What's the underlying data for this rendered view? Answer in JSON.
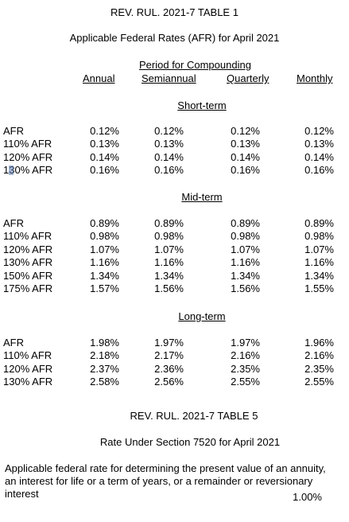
{
  "table1": {
    "title": "REV. RUL. 2021-7 TABLE 1",
    "subtitle": "Applicable Federal Rates (AFR) for April 2021",
    "period_header": "Period for Compounding",
    "columns": [
      "Annual",
      "Semiannual",
      "Quarterly",
      "Monthly"
    ],
    "sections": [
      {
        "name": "Short-term",
        "rows": [
          {
            "label": "AFR",
            "values": [
              "0.12%",
              "0.12%",
              "0.12%",
              "0.12%"
            ]
          },
          {
            "label": "110% AFR",
            "values": [
              "0.13%",
              "0.13%",
              "0.13%",
              "0.13%"
            ]
          },
          {
            "label": "120% AFR",
            "values": [
              "0.14%",
              "0.14%",
              "0.14%",
              "0.14%"
            ]
          },
          {
            "label": "130% AFR",
            "values": [
              "0.16%",
              "0.16%",
              "0.16%",
              "0.16%"
            ]
          }
        ]
      },
      {
        "name": "Mid-term",
        "rows": [
          {
            "label": "AFR",
            "values": [
              "0.89%",
              "0.89%",
              "0.89%",
              "0.89%"
            ]
          },
          {
            "label": "110% AFR",
            "values": [
              "0.98%",
              "0.98%",
              "0.98%",
              "0.98%"
            ]
          },
          {
            "label": "120% AFR",
            "values": [
              "1.07%",
              "1.07%",
              "1.07%",
              "1.07%"
            ]
          },
          {
            "label": "130% AFR",
            "values": [
              "1.16%",
              "1.16%",
              "1.16%",
              "1.16%"
            ]
          },
          {
            "label": "150% AFR",
            "values": [
              "1.34%",
              "1.34%",
              "1.34%",
              "1.34%"
            ]
          },
          {
            "label": "175% AFR",
            "values": [
              "1.57%",
              "1.56%",
              "1.56%",
              "1.55%"
            ]
          }
        ]
      },
      {
        "name": "Long-term",
        "rows": [
          {
            "label": "AFR",
            "values": [
              "1.98%",
              "1.97%",
              "1.97%",
              "1.96%"
            ]
          },
          {
            "label": "110% AFR",
            "values": [
              "2.18%",
              "2.17%",
              "2.16%",
              "2.16%"
            ]
          },
          {
            "label": "120% AFR",
            "values": [
              "2.37%",
              "2.36%",
              "2.35%",
              "2.35%"
            ]
          },
          {
            "label": "130% AFR",
            "values": [
              "2.58%",
              "2.56%",
              "2.55%",
              "2.55%"
            ]
          }
        ]
      }
    ]
  },
  "table5": {
    "title": "REV. RUL. 2021-7 TABLE 5",
    "subtitle": "Rate Under Section 7520 for April 2021",
    "description": "Applicable federal rate for determining the present value of an annuity, an interest for life or a term of years, or a remainder or reversionary interest",
    "rate": "1.00%"
  }
}
